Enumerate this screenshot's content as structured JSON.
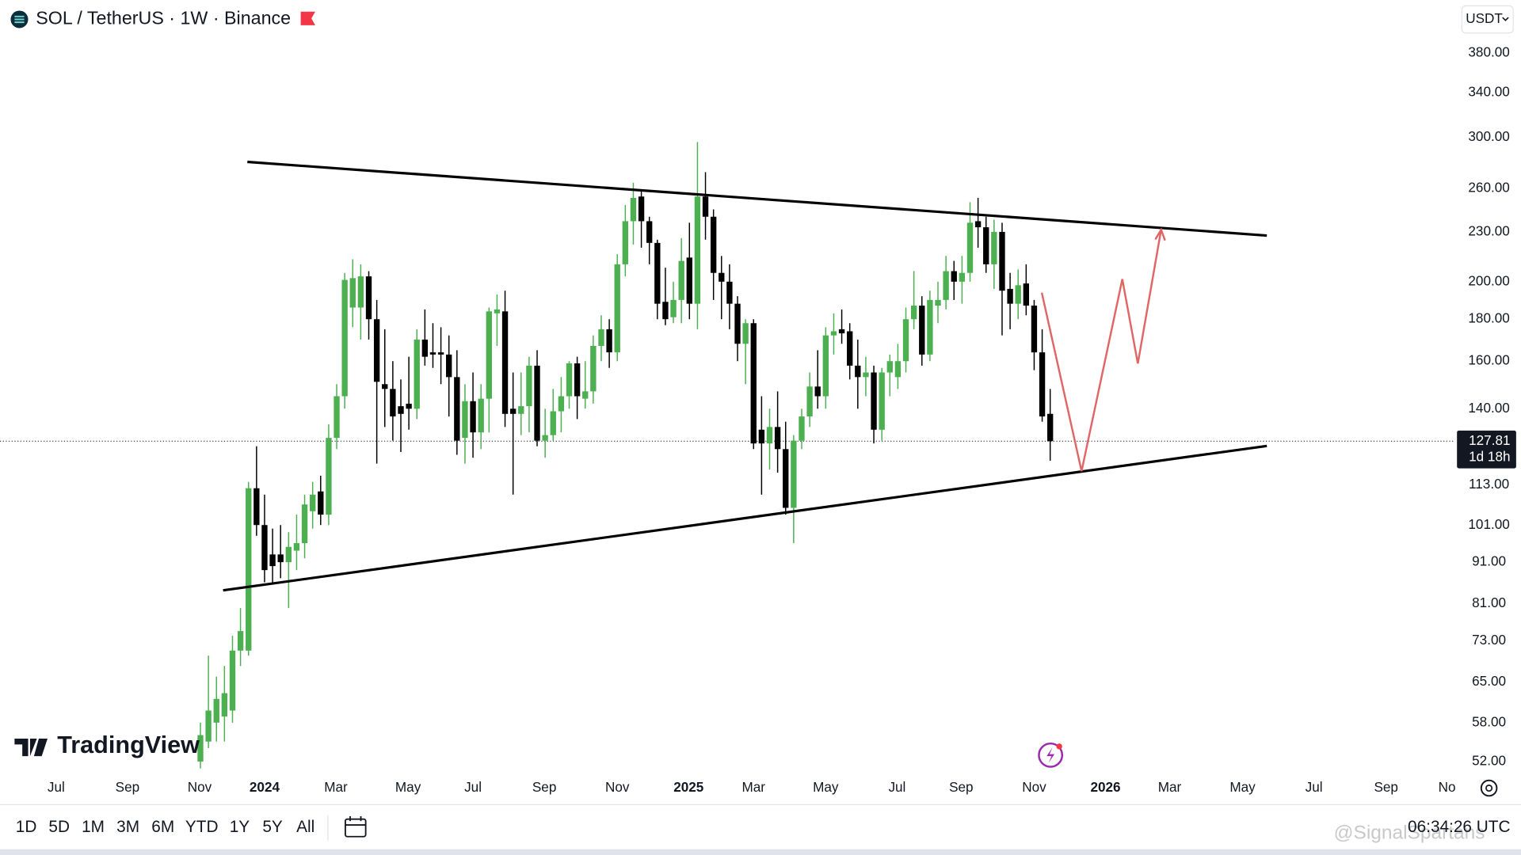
{
  "chart_data": {
    "type": "candlestick",
    "title": "SOL / TetherUS · 1W · Binance",
    "currency": "USDT",
    "open": [
      52,
      55,
      58,
      59,
      60,
      71,
      71,
      112,
      101,
      93,
      93,
      91,
      94,
      96,
      105,
      111,
      104,
      129,
      145,
      186,
      186,
      203,
      180,
      150,
      148,
      141,
      142,
      140,
      170,
      164,
      164,
      163,
      153,
      129,
      143,
      131,
      144,
      183,
      184,
      140,
      138,
      141,
      158,
      128,
      130,
      139,
      145,
      159,
      144,
      147,
      167,
      175,
      164,
      210,
      237,
      254,
      237,
      223,
      189,
      181,
      190,
      214,
      188,
      254,
      240,
      205,
      200,
      188,
      168,
      178,
      132,
      127,
      133,
      125,
      106,
      128,
      137,
      149,
      145,
      172,
      175,
      174,
      158,
      153,
      155,
      132,
      155,
      153,
      160,
      180,
      187,
      163,
      187,
      190,
      206,
      200,
      205,
      237,
      233,
      210,
      230,
      196,
      188,
      199,
      187,
      164,
      138
    ],
    "high": [
      58,
      70,
      66,
      68,
      74,
      80,
      114,
      126,
      110,
      100,
      101,
      99,
      104,
      110,
      114,
      116,
      134,
      150,
      205,
      213,
      210,
      206,
      190,
      175,
      160,
      152,
      162,
      175,
      185,
      178,
      176,
      172,
      165,
      150,
      155,
      150,
      186,
      193,
      195,
      155,
      155,
      162,
      165,
      140,
      148,
      153,
      160,
      162,
      160,
      172,
      182,
      180,
      216,
      248,
      264,
      258,
      240,
      225,
      208,
      200,
      226,
      236,
      296,
      272,
      245,
      215,
      210,
      192,
      180,
      180,
      145,
      140,
      147,
      135,
      130,
      140,
      155,
      165,
      176,
      183,
      185,
      178,
      170,
      162,
      158,
      157,
      163,
      168,
      186,
      206,
      192,
      195,
      200,
      215,
      212,
      215,
      250,
      253,
      240,
      238,
      236,
      205,
      207,
      210,
      190,
      175,
      148
    ],
    "low": [
      51,
      54,
      55,
      55,
      58,
      68,
      70,
      98,
      86,
      86,
      87,
      80,
      89,
      92,
      100,
      101,
      101,
      125,
      140,
      176,
      170,
      170,
      120,
      133,
      128,
      124,
      132,
      136,
      158,
      157,
      150,
      137,
      123,
      120,
      122,
      125,
      131,
      167,
      133,
      110,
      130,
      131,
      126,
      122,
      128,
      131,
      140,
      136,
      140,
      142,
      160,
      157,
      160,
      203,
      222,
      220,
      210,
      180,
      177,
      178,
      178,
      180,
      175,
      225,
      190,
      180,
      175,
      160,
      150,
      125,
      110,
      118,
      117,
      104,
      96,
      125,
      133,
      140,
      140,
      163,
      168,
      152,
      140,
      145,
      127,
      128,
      145,
      148,
      155,
      175,
      158,
      160,
      178,
      185,
      190,
      188,
      200,
      220,
      205,
      196,
      172,
      175,
      180,
      182,
      156,
      135,
      121
    ],
    "close": [
      56,
      60,
      62,
      63,
      71,
      75,
      112,
      101,
      89,
      90,
      91,
      95,
      96,
      107,
      110,
      104,
      129,
      145,
      201,
      202,
      203,
      180,
      151,
      148,
      137,
      138,
      140,
      170,
      162,
      163,
      163,
      153,
      128,
      143,
      131,
      144,
      184,
      185,
      138,
      138,
      141,
      158,
      128,
      130,
      139,
      145,
      159,
      145,
      147,
      167,
      175,
      164,
      210,
      237,
      253,
      237,
      223,
      188,
      180,
      190,
      212,
      188,
      254,
      240,
      205,
      200,
      188,
      168,
      178,
      127,
      127,
      133,
      125,
      106,
      128,
      137,
      149,
      145,
      172,
      174,
      173,
      158,
      153,
      155,
      132,
      155,
      160,
      160,
      180,
      187,
      163,
      190,
      190,
      206,
      200,
      205,
      236,
      233,
      210,
      230,
      195,
      188,
      198,
      187,
      164,
      137,
      127.81
    ],
    "up_color": "#4caf50",
    "down_color": "#000000",
    "log_scale": true,
    "grid": false,
    "ylim": [
      50,
      441
    ],
    "yticks": [
      {
        "value": 380,
        "label": "380.00"
      },
      {
        "value": 340,
        "label": "340.00"
      },
      {
        "value": 300,
        "label": "300.00"
      },
      {
        "value": 260,
        "label": "260.00"
      },
      {
        "value": 230,
        "label": "230.00"
      },
      {
        "value": 200,
        "label": "200.00"
      },
      {
        "value": 180,
        "label": "180.00"
      },
      {
        "value": 160,
        "label": "160.00"
      },
      {
        "value": 140,
        "label": "140.00"
      },
      {
        "value": 113,
        "label": "113.00"
      },
      {
        "value": 101,
        "label": "101.00"
      },
      {
        "value": 91,
        "label": "91.00"
      },
      {
        "value": 81,
        "label": "81.00"
      },
      {
        "value": 73,
        "label": "73.00"
      },
      {
        "value": 65,
        "label": "65.00"
      },
      {
        "value": 58,
        "label": "58.00"
      },
      {
        "value": 52,
        "label": "52.00"
      }
    ],
    "xlim": [
      -25,
      156.5
    ],
    "xticks": [
      {
        "value": -18,
        "label": "Jul"
      },
      {
        "value": -9.1,
        "label": "Sep"
      },
      {
        "value": -0.1,
        "label": "Nov"
      },
      {
        "value": 8,
        "label": "2024"
      },
      {
        "value": 16.9,
        "label": "Mar"
      },
      {
        "value": 25.9,
        "label": "May"
      },
      {
        "value": 34,
        "label": "Jul"
      },
      {
        "value": 42.9,
        "label": "Sep"
      },
      {
        "value": 52,
        "label": "Nov"
      },
      {
        "value": 60.9,
        "label": "2025"
      },
      {
        "value": 69,
        "label": "Mar"
      },
      {
        "value": 78,
        "label": "May"
      },
      {
        "value": 86.9,
        "label": "Jul"
      },
      {
        "value": 94.9,
        "label": "Sep"
      },
      {
        "value": 104,
        "label": "Nov"
      },
      {
        "value": 112.9,
        "label": "2026"
      },
      {
        "value": 120.9,
        "label": "Mar"
      },
      {
        "value": 130,
        "label": "May"
      },
      {
        "value": 138.9,
        "label": "Jul"
      },
      {
        "value": 147.9,
        "label": "Sep"
      },
      {
        "value": 155.5,
        "label": "No"
      }
    ],
    "last_price": 127.81,
    "countdown": "1d 18h"
  },
  "branding": "TradingView",
  "toolbar": {
    "ranges": [
      "1D",
      "5D",
      "1M",
      "3M",
      "6M",
      "YTD",
      "1Y",
      "5Y",
      "All"
    ],
    "clock": "06:34:26 UTC"
  },
  "watermark": "@SignalSpartans"
}
